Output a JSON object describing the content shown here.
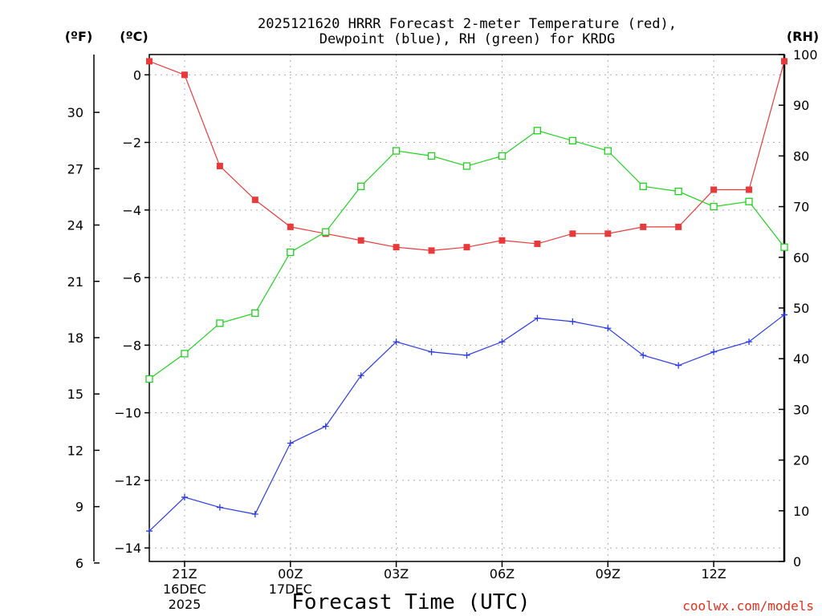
{
  "chart_data": {
    "type": "line",
    "title_line1": "2025121620 HRRR Forecast 2-meter Temperature (red),",
    "title_line2": "Dewpoint (blue), RH (green) for KRDG",
    "unit_f": "(ºF)",
    "unit_c": "(ºC)",
    "unit_rh": "(RH)",
    "xlabel": "Forecast Time (UTC)",
    "credit": "coolwx.com/models",
    "x_hours": [
      20,
      21,
      22,
      23,
      24,
      25,
      26,
      27,
      28,
      29,
      30,
      31,
      32,
      33,
      34,
      35,
      36,
      37,
      38
    ],
    "x_ticks": [
      {
        "hour": 21,
        "line1": "21Z",
        "line2": "16DEC",
        "line3": "2025"
      },
      {
        "hour": 24,
        "line1": "00Z",
        "line2": "17DEC",
        "line3": ""
      },
      {
        "hour": 27,
        "line1": "03Z",
        "line2": "",
        "line3": ""
      },
      {
        "hour": 30,
        "line1": "06Z",
        "line2": "",
        "line3": ""
      },
      {
        "hour": 33,
        "line1": "09Z",
        "line2": "",
        "line3": ""
      },
      {
        "hour": 36,
        "line1": "12Z",
        "line2": "",
        "line3": ""
      }
    ],
    "xlim": [
      20,
      38
    ],
    "c_axis": {
      "ylim": [
        -14.4,
        0.6
      ],
      "ticks": [
        "0",
        "−2",
        "−4",
        "−6",
        "−8",
        "−10",
        "−12",
        "−14"
      ],
      "tick_values": [
        0,
        -2,
        -4,
        -6,
        -8,
        -10,
        -12,
        -14
      ]
    },
    "f_axis": {
      "ticks": [
        "30",
        "27",
        "24",
        "21",
        "18",
        "15",
        "12",
        "9",
        "6"
      ],
      "tick_values": [
        30,
        27,
        24,
        21,
        18,
        15,
        12,
        9,
        6
      ]
    },
    "rh_axis": {
      "ylim": [
        0,
        100
      ],
      "ticks": [
        "100",
        "90",
        "80",
        "70",
        "60",
        "50",
        "40",
        "30",
        "20",
        "10",
        "0"
      ],
      "tick_values": [
        100,
        90,
        80,
        70,
        60,
        50,
        40,
        30,
        20,
        10,
        0
      ]
    },
    "series": [
      {
        "name": "Temperature",
        "unit": "C",
        "color": "#e83a3a",
        "marker": "filled-square",
        "values": [
          0.4,
          0.0,
          -2.7,
          -3.7,
          -4.5,
          -4.7,
          -4.9,
          -5.1,
          -5.2,
          -5.1,
          -4.9,
          -5.0,
          -4.7,
          -4.7,
          -4.5,
          -4.5,
          -3.4,
          -3.4,
          0.4
        ]
      },
      {
        "name": "Dewpoint",
        "unit": "C",
        "color": "#2a3ae8",
        "marker": "plus",
        "values": [
          -13.5,
          -12.5,
          -12.8,
          -13.0,
          -10.9,
          -10.4,
          -8.9,
          -7.9,
          -8.2,
          -8.3,
          -7.9,
          -7.2,
          -7.3,
          -7.5,
          -8.3,
          -8.6,
          -8.2,
          -7.9,
          -7.1
        ]
      },
      {
        "name": "RH",
        "unit": "%",
        "color": "#22d022",
        "marker": "open-square",
        "values": [
          36,
          41,
          47,
          49,
          61,
          65,
          74,
          81,
          80,
          78,
          80,
          85,
          83,
          81,
          74,
          73,
          70,
          71,
          62
        ]
      }
    ]
  }
}
